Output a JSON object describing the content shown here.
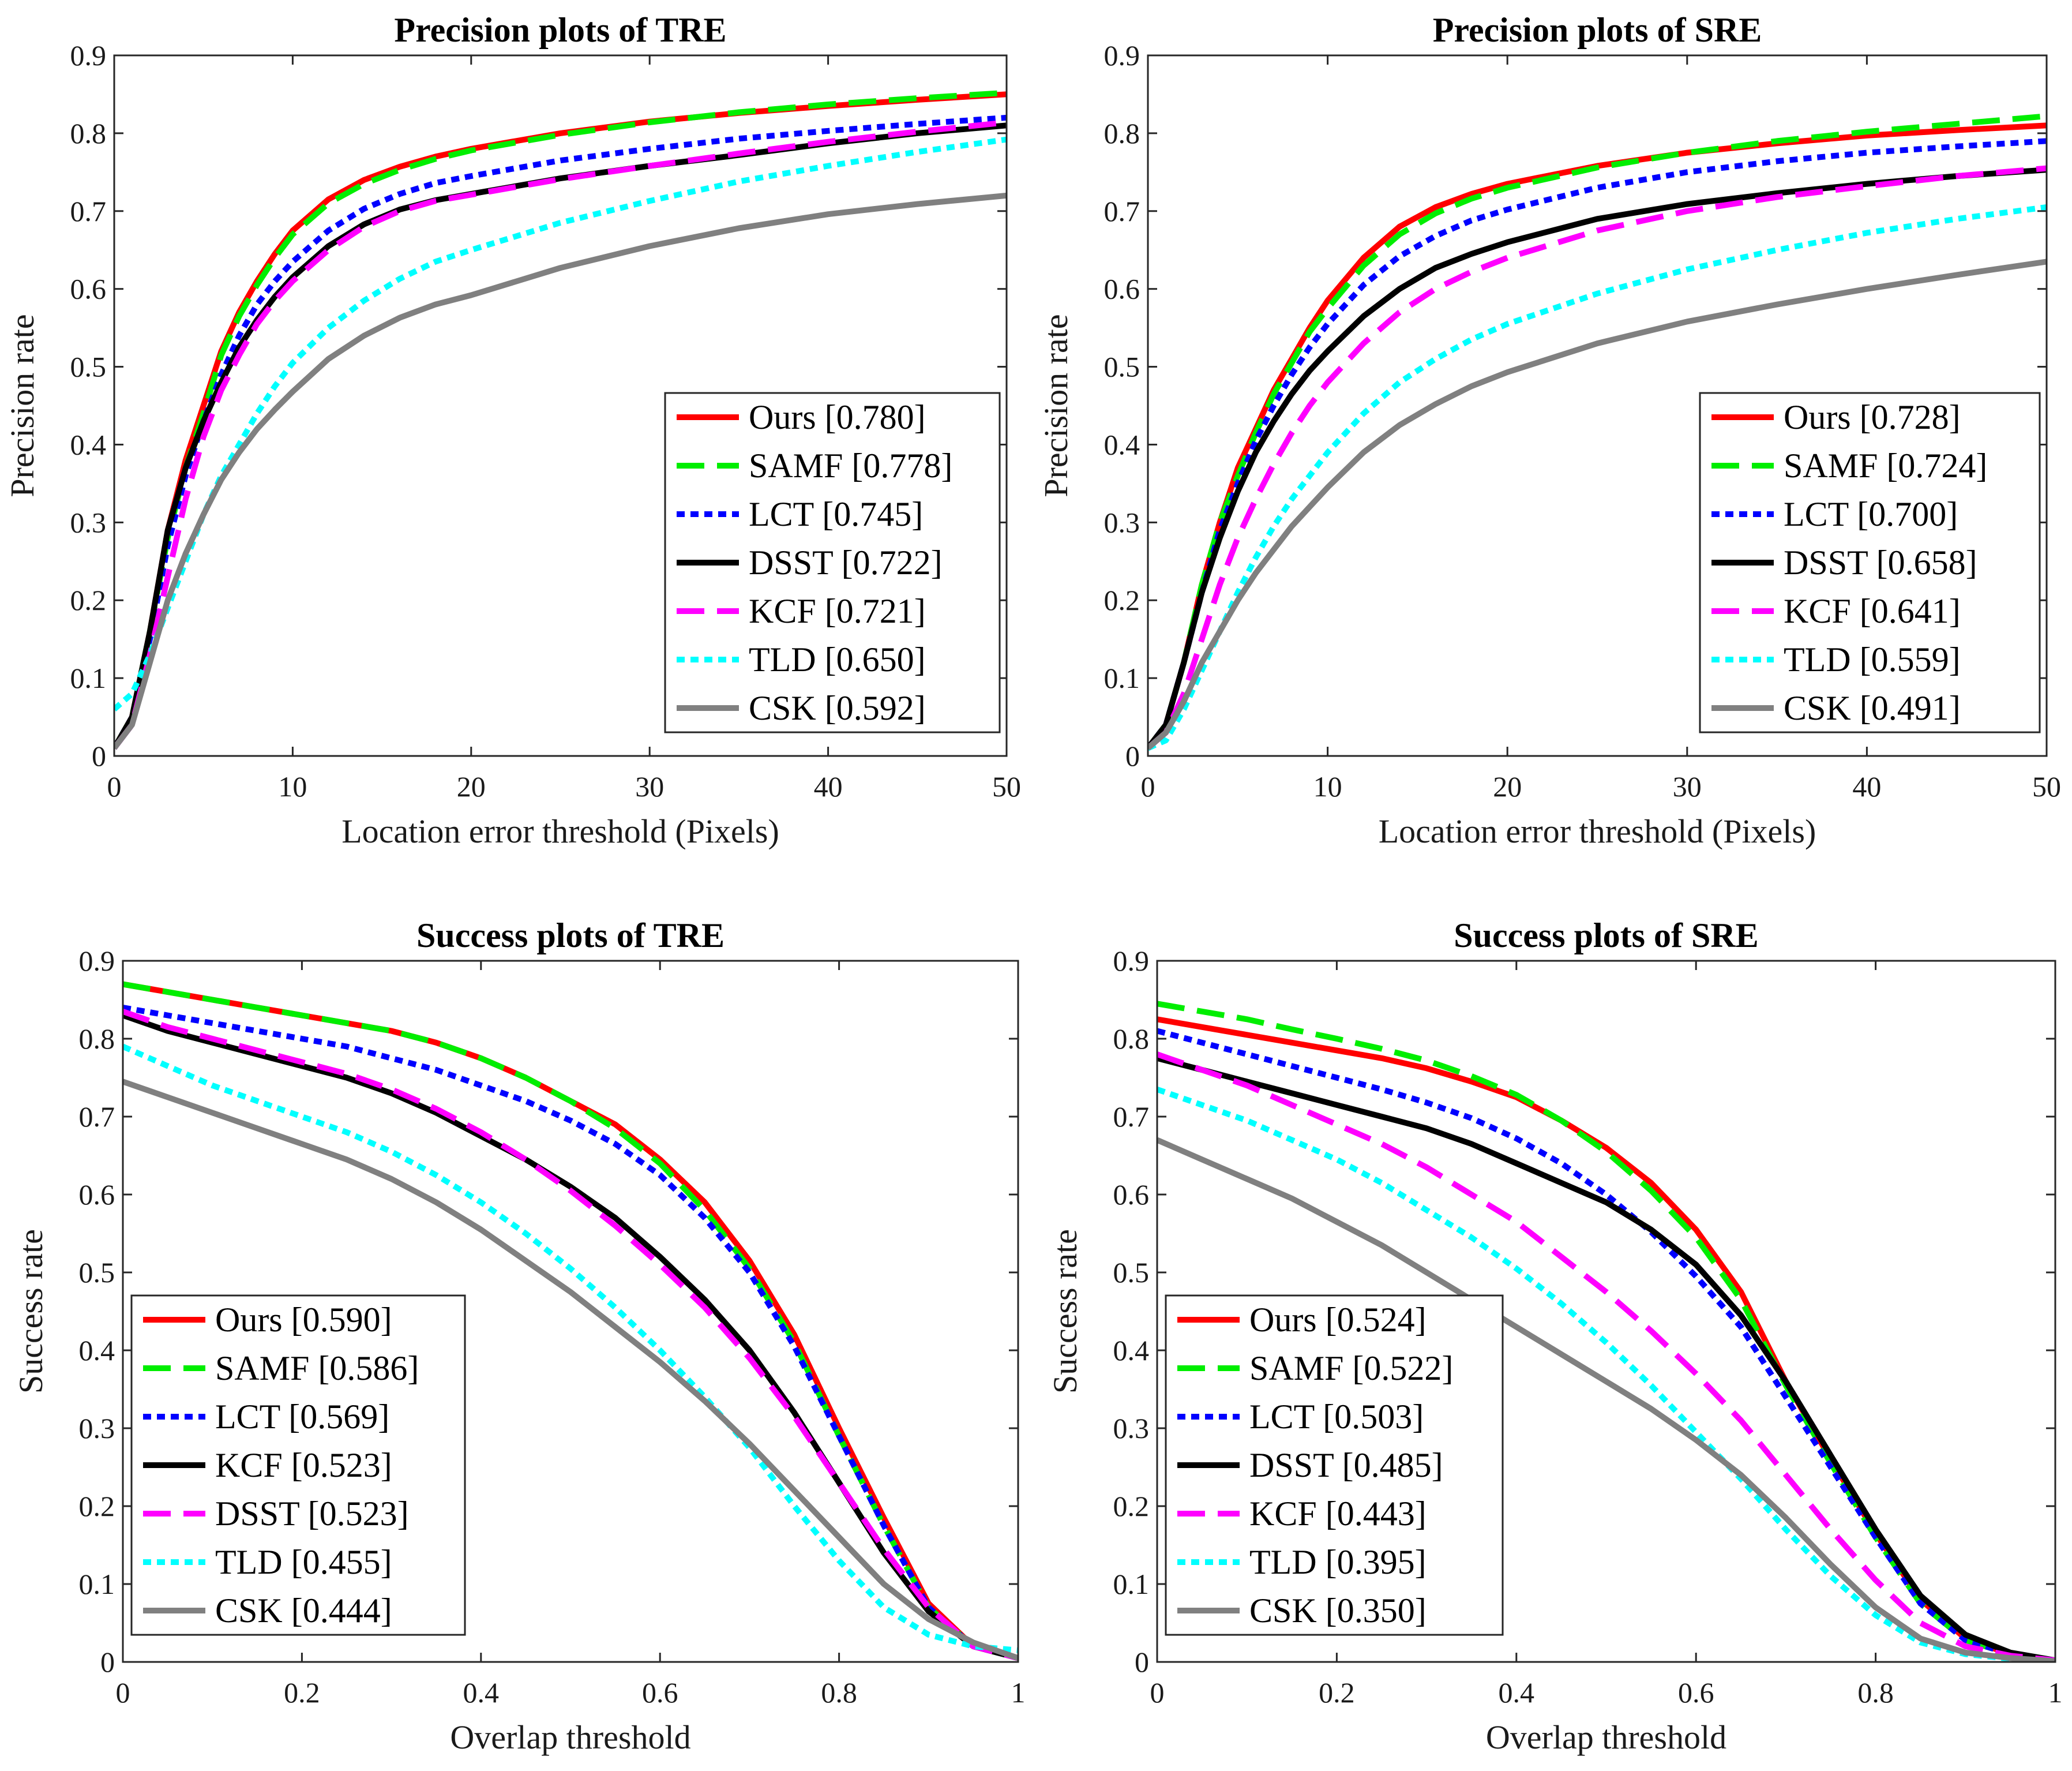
{
  "chart_data": [
    {
      "type": "line",
      "title": "Precision plots of TRE",
      "xlabel": "Location error threshold (Pixels)",
      "ylabel": "Precision rate",
      "xlim": [
        0,
        50
      ],
      "ylim": [
        0,
        0.9
      ],
      "xticks": [
        "0",
        "10",
        "20",
        "30",
        "40",
        "50"
      ],
      "yticks": [
        "0",
        "0.1",
        "0.2",
        "0.3",
        "0.4",
        "0.5",
        "0.6",
        "0.7",
        "0.8",
        "0.9"
      ],
      "legend": "bottom-right",
      "x": [
        0,
        1,
        2,
        3,
        4,
        5,
        6,
        7,
        8,
        9,
        10,
        12,
        14,
        16,
        18,
        20,
        25,
        30,
        35,
        40,
        45,
        50
      ],
      "series": [
        {
          "name": "Ours [0.780]",
          "color": "#ff0000",
          "style": "solid",
          "values": [
            0.01,
            0.05,
            0.16,
            0.29,
            0.38,
            0.45,
            0.52,
            0.57,
            0.61,
            0.645,
            0.675,
            0.715,
            0.74,
            0.757,
            0.77,
            0.78,
            0.8,
            0.815,
            0.826,
            0.835,
            0.843,
            0.85
          ]
        },
        {
          "name": "SAMF [0.778]",
          "color": "#00ee00",
          "style": "dashed",
          "values": [
            0.01,
            0.05,
            0.16,
            0.28,
            0.37,
            0.44,
            0.515,
            0.565,
            0.605,
            0.64,
            0.67,
            0.71,
            0.735,
            0.753,
            0.767,
            0.778,
            0.798,
            0.814,
            0.827,
            0.837,
            0.845,
            0.852
          ]
        },
        {
          "name": "LCT [0.745]",
          "color": "#0000ff",
          "style": "dotted",
          "values": [
            0.01,
            0.05,
            0.15,
            0.27,
            0.36,
            0.43,
            0.49,
            0.54,
            0.58,
            0.61,
            0.635,
            0.675,
            0.703,
            0.722,
            0.736,
            0.745,
            0.765,
            0.78,
            0.793,
            0.803,
            0.812,
            0.82
          ]
        },
        {
          "name": "DSST [0.722]",
          "color": "#000000",
          "style": "solid",
          "values": [
            0.01,
            0.05,
            0.16,
            0.29,
            0.37,
            0.43,
            0.48,
            0.525,
            0.56,
            0.59,
            0.615,
            0.655,
            0.683,
            0.702,
            0.714,
            0.722,
            0.742,
            0.758,
            0.772,
            0.787,
            0.8,
            0.81
          ]
        },
        {
          "name": "KCF [0.721]",
          "color": "#ff00ff",
          "style": "dashed",
          "values": [
            0.01,
            0.04,
            0.13,
            0.23,
            0.33,
            0.41,
            0.47,
            0.515,
            0.555,
            0.585,
            0.61,
            0.65,
            0.68,
            0.7,
            0.713,
            0.721,
            0.741,
            0.758,
            0.774,
            0.789,
            0.802,
            0.814
          ]
        },
        {
          "name": "TLD [0.650]",
          "color": "#00ffff",
          "style": "dotted",
          "values": [
            0.06,
            0.08,
            0.13,
            0.19,
            0.25,
            0.31,
            0.36,
            0.4,
            0.44,
            0.475,
            0.505,
            0.55,
            0.585,
            0.613,
            0.635,
            0.65,
            0.685,
            0.713,
            0.738,
            0.758,
            0.776,
            0.792
          ]
        },
        {
          "name": "CSK [0.592]",
          "color": "#808080",
          "style": "solid",
          "values": [
            0.01,
            0.04,
            0.12,
            0.2,
            0.26,
            0.31,
            0.355,
            0.39,
            0.42,
            0.445,
            0.468,
            0.51,
            0.54,
            0.563,
            0.58,
            0.592,
            0.627,
            0.655,
            0.678,
            0.696,
            0.709,
            0.72
          ]
        }
      ]
    },
    {
      "type": "line",
      "title": "Precision plots of SRE",
      "xlabel": "Location error threshold (Pixels)",
      "ylabel": "Precision rate",
      "xlim": [
        0,
        50
      ],
      "ylim": [
        0,
        0.9
      ],
      "xticks": [
        "0",
        "10",
        "20",
        "30",
        "40",
        "50"
      ],
      "yticks": [
        "0",
        "0.1",
        "0.2",
        "0.3",
        "0.4",
        "0.5",
        "0.6",
        "0.7",
        "0.8",
        "0.9"
      ],
      "legend": "bottom-right",
      "x": [
        0,
        1,
        2,
        3,
        4,
        5,
        6,
        7,
        8,
        9,
        10,
        12,
        14,
        16,
        18,
        20,
        25,
        30,
        35,
        40,
        45,
        50
      ],
      "series": [
        {
          "name": "Ours [0.728]",
          "color": "#ff0000",
          "style": "solid",
          "values": [
            0.01,
            0.04,
            0.12,
            0.22,
            0.3,
            0.37,
            0.42,
            0.47,
            0.51,
            0.55,
            0.585,
            0.64,
            0.68,
            0.705,
            0.722,
            0.735,
            0.758,
            0.775,
            0.787,
            0.797,
            0.804,
            0.81
          ]
        },
        {
          "name": "SAMF [0.724]",
          "color": "#00ee00",
          "style": "dashed",
          "values": [
            0.01,
            0.04,
            0.12,
            0.22,
            0.3,
            0.36,
            0.415,
            0.465,
            0.505,
            0.545,
            0.575,
            0.63,
            0.67,
            0.697,
            0.716,
            0.73,
            0.756,
            0.775,
            0.79,
            0.802,
            0.812,
            0.822
          ]
        },
        {
          "name": "LCT [0.700]",
          "color": "#0000ff",
          "style": "dotted",
          "values": [
            0.01,
            0.04,
            0.12,
            0.21,
            0.29,
            0.35,
            0.405,
            0.45,
            0.49,
            0.525,
            0.555,
            0.605,
            0.642,
            0.668,
            0.688,
            0.702,
            0.73,
            0.75,
            0.764,
            0.775,
            0.783,
            0.79
          ]
        },
        {
          "name": "DSST [0.658]",
          "color": "#000000",
          "style": "solid",
          "values": [
            0.01,
            0.04,
            0.12,
            0.21,
            0.28,
            0.34,
            0.39,
            0.43,
            0.465,
            0.495,
            0.52,
            0.565,
            0.6,
            0.627,
            0.645,
            0.66,
            0.69,
            0.709,
            0.723,
            0.735,
            0.745,
            0.753
          ]
        },
        {
          "name": "KCF [0.641]",
          "color": "#ff00ff",
          "style": "dashed",
          "values": [
            0.01,
            0.03,
            0.08,
            0.15,
            0.22,
            0.28,
            0.33,
            0.375,
            0.415,
            0.45,
            0.48,
            0.53,
            0.57,
            0.6,
            0.622,
            0.64,
            0.675,
            0.7,
            0.718,
            0.732,
            0.745,
            0.755
          ]
        },
        {
          "name": "TLD [0.559]",
          "color": "#00ffff",
          "style": "dotted",
          "values": [
            0.01,
            0.02,
            0.06,
            0.11,
            0.16,
            0.21,
            0.255,
            0.295,
            0.33,
            0.36,
            0.39,
            0.44,
            0.48,
            0.51,
            0.535,
            0.555,
            0.594,
            0.625,
            0.65,
            0.672,
            0.69,
            0.705
          ]
        },
        {
          "name": "CSK [0.491]",
          "color": "#808080",
          "style": "solid",
          "values": [
            0.01,
            0.03,
            0.07,
            0.12,
            0.16,
            0.2,
            0.235,
            0.265,
            0.295,
            0.32,
            0.345,
            0.39,
            0.425,
            0.452,
            0.475,
            0.493,
            0.53,
            0.558,
            0.58,
            0.6,
            0.618,
            0.635
          ]
        }
      ]
    },
    {
      "type": "line",
      "title": "Success plots of TRE",
      "xlabel": "Overlap threshold",
      "ylabel": "Success rate",
      "xlim": [
        0,
        1
      ],
      "ylim": [
        0,
        0.9
      ],
      "xticks": [
        "0",
        "0.2",
        "0.4",
        "0.6",
        "0.8",
        "1"
      ],
      "yticks": [
        "0",
        "0.1",
        "0.2",
        "0.3",
        "0.4",
        "0.5",
        "0.6",
        "0.7",
        "0.8",
        "0.9"
      ],
      "legend": "bottom-left",
      "x": [
        0,
        0.05,
        0.1,
        0.15,
        0.2,
        0.25,
        0.3,
        0.35,
        0.4,
        0.45,
        0.5,
        0.55,
        0.6,
        0.65,
        0.7,
        0.75,
        0.8,
        0.85,
        0.9,
        0.95,
        1
      ],
      "series": [
        {
          "name": "Ours [0.590]",
          "color": "#ff0000",
          "style": "solid",
          "values": [
            0.87,
            0.86,
            0.85,
            0.84,
            0.83,
            0.82,
            0.81,
            0.795,
            0.775,
            0.75,
            0.72,
            0.69,
            0.645,
            0.59,
            0.515,
            0.42,
            0.3,
            0.185,
            0.075,
            0.02,
            0.005
          ]
        },
        {
          "name": "SAMF [0.586]",
          "color": "#00ee00",
          "style": "dashed",
          "values": [
            0.87,
            0.86,
            0.85,
            0.84,
            0.83,
            0.82,
            0.81,
            0.795,
            0.775,
            0.75,
            0.72,
            0.685,
            0.64,
            0.58,
            0.505,
            0.41,
            0.29,
            0.175,
            0.07,
            0.02,
            0.005
          ]
        },
        {
          "name": "LCT [0.569]",
          "color": "#0000ff",
          "style": "dotted",
          "values": [
            0.84,
            0.83,
            0.82,
            0.81,
            0.8,
            0.79,
            0.775,
            0.76,
            0.74,
            0.72,
            0.695,
            0.665,
            0.625,
            0.57,
            0.5,
            0.405,
            0.29,
            0.175,
            0.07,
            0.02,
            0.005
          ]
        },
        {
          "name": "KCF [0.523]",
          "color": "#000000",
          "style": "solid",
          "values": [
            0.83,
            0.81,
            0.795,
            0.78,
            0.765,
            0.75,
            0.73,
            0.705,
            0.675,
            0.645,
            0.61,
            0.57,
            0.52,
            0.465,
            0.4,
            0.32,
            0.23,
            0.14,
            0.065,
            0.02,
            0.005
          ]
        },
        {
          "name": "DSST [0.523]",
          "color": "#ff00ff",
          "style": "dashed",
          "values": [
            0.835,
            0.815,
            0.8,
            0.785,
            0.77,
            0.755,
            0.735,
            0.71,
            0.68,
            0.645,
            0.605,
            0.56,
            0.51,
            0.455,
            0.39,
            0.315,
            0.23,
            0.145,
            0.07,
            0.02,
            0.005
          ]
        },
        {
          "name": "TLD [0.455]",
          "color": "#00ffff",
          "style": "dotted",
          "values": [
            0.79,
            0.765,
            0.74,
            0.72,
            0.7,
            0.68,
            0.655,
            0.625,
            0.59,
            0.55,
            0.505,
            0.455,
            0.4,
            0.34,
            0.275,
            0.2,
            0.13,
            0.07,
            0.035,
            0.02,
            0.015
          ]
        },
        {
          "name": "CSK [0.444]",
          "color": "#808080",
          "style": "solid",
          "values": [
            0.745,
            0.725,
            0.705,
            0.685,
            0.665,
            0.645,
            0.62,
            0.59,
            0.555,
            0.515,
            0.475,
            0.43,
            0.385,
            0.335,
            0.28,
            0.22,
            0.16,
            0.1,
            0.055,
            0.025,
            0.005
          ]
        }
      ]
    },
    {
      "type": "line",
      "title": "Success plots of SRE",
      "xlabel": "Overlap threshold",
      "ylabel": "Success rate",
      "xlim": [
        0,
        1
      ],
      "ylim": [
        0,
        0.9
      ],
      "xticks": [
        "0",
        "0.2",
        "0.4",
        "0.6",
        "0.8",
        "1"
      ],
      "yticks": [
        "0",
        "0.1",
        "0.2",
        "0.3",
        "0.4",
        "0.5",
        "0.6",
        "0.7",
        "0.8",
        "0.9"
      ],
      "legend": "bottom-left",
      "x": [
        0,
        0.05,
        0.1,
        0.15,
        0.2,
        0.25,
        0.3,
        0.35,
        0.4,
        0.45,
        0.5,
        0.55,
        0.6,
        0.65,
        0.7,
        0.75,
        0.8,
        0.85,
        0.9,
        0.95,
        1
      ],
      "series": [
        {
          "name": "Ours [0.524]",
          "color": "#ff0000",
          "style": "solid",
          "values": [
            0.825,
            0.815,
            0.805,
            0.795,
            0.785,
            0.775,
            0.762,
            0.745,
            0.725,
            0.695,
            0.66,
            0.615,
            0.555,
            0.475,
            0.36,
            0.26,
            0.165,
            0.08,
            0.03,
            0.01,
            0.002
          ]
        },
        {
          "name": "SAMF [0.522]",
          "color": "#00ee00",
          "style": "dashed",
          "values": [
            0.845,
            0.835,
            0.825,
            0.812,
            0.8,
            0.787,
            0.772,
            0.752,
            0.728,
            0.695,
            0.655,
            0.605,
            0.545,
            0.465,
            0.355,
            0.255,
            0.16,
            0.075,
            0.028,
            0.01,
            0.002
          ]
        },
        {
          "name": "LCT [0.503]",
          "color": "#0000ff",
          "style": "dotted",
          "values": [
            0.81,
            0.795,
            0.78,
            0.765,
            0.75,
            0.735,
            0.718,
            0.698,
            0.672,
            0.64,
            0.6,
            0.552,
            0.495,
            0.43,
            0.34,
            0.25,
            0.16,
            0.075,
            0.028,
            0.01,
            0.002
          ]
        },
        {
          "name": "DSST [0.485]",
          "color": "#000000",
          "style": "solid",
          "values": [
            0.775,
            0.76,
            0.745,
            0.73,
            0.715,
            0.7,
            0.685,
            0.665,
            0.64,
            0.615,
            0.59,
            0.555,
            0.51,
            0.445,
            0.36,
            0.265,
            0.17,
            0.085,
            0.035,
            0.012,
            0.002
          ]
        },
        {
          "name": "KCF [0.443]",
          "color": "#ff00ff",
          "style": "dashed",
          "values": [
            0.78,
            0.76,
            0.74,
            0.715,
            0.69,
            0.665,
            0.635,
            0.6,
            0.565,
            0.52,
            0.475,
            0.425,
            0.37,
            0.31,
            0.24,
            0.17,
            0.105,
            0.05,
            0.02,
            0.008,
            0.002
          ]
        },
        {
          "name": "TLD [0.395]",
          "color": "#00ffff",
          "style": "dotted",
          "values": [
            0.735,
            0.715,
            0.695,
            0.67,
            0.645,
            0.615,
            0.58,
            0.545,
            0.505,
            0.46,
            0.41,
            0.355,
            0.295,
            0.235,
            0.17,
            0.11,
            0.06,
            0.025,
            0.01,
            0.004,
            0.001
          ]
        },
        {
          "name": "CSK [0.350]",
          "color": "#808080",
          "style": "solid",
          "values": [
            0.67,
            0.645,
            0.62,
            0.595,
            0.565,
            0.535,
            0.5,
            0.465,
            0.43,
            0.395,
            0.36,
            0.325,
            0.285,
            0.24,
            0.185,
            0.125,
            0.07,
            0.03,
            0.012,
            0.005,
            0.001
          ]
        }
      ]
    }
  ]
}
